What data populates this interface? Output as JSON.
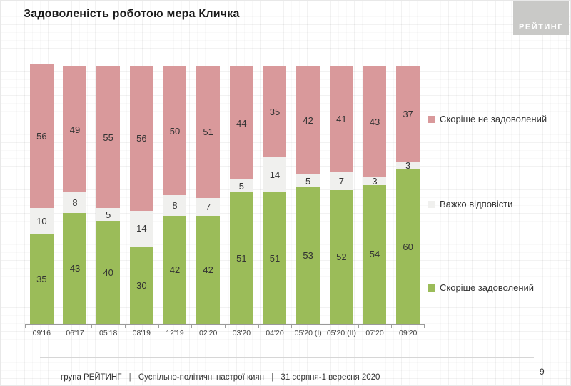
{
  "title": "Задоволеність роботою мера Кличка",
  "logo": {
    "text": "РЕЙТИНГ",
    "background": "#c9c9c7"
  },
  "page_number": "9",
  "footer": {
    "org": "група РЕЙТИНГ",
    "separator": "|",
    "study": "Суспільно-політичні настрої киян",
    "date": "31 серпня-1 вересня  2020"
  },
  "colors": {
    "dissatisfied": "#d9999b",
    "hard_to_say": "#f0f0ee",
    "satisfied": "#9bbc59",
    "axis": "#9a9a9a",
    "value_label": "#333333"
  },
  "chart_data": {
    "type": "bar",
    "stacked": true,
    "unit": "%",
    "title": "Задоволеність роботою мера Кличка",
    "xlabel": "",
    "ylabel": "",
    "ylim": [
      0,
      100
    ],
    "grid": false,
    "legend_position": "right",
    "categories": [
      "09'16",
      "06'17",
      "05'18",
      "08'19",
      "12'19",
      "02'20",
      "03'20",
      "04'20",
      "05'20 (I)",
      "05'20 (II)",
      "07'20",
      "09'20"
    ],
    "series": [
      {
        "name": "Скоріше не задоволений",
        "color": "#d9999b",
        "values": [
          56,
          49,
          55,
          56,
          50,
          51,
          44,
          35,
          42,
          41,
          43,
          37
        ]
      },
      {
        "name": "Важко відповісти",
        "color": "#f0f0ee",
        "values": [
          10,
          8,
          5,
          14,
          8,
          7,
          5,
          14,
          5,
          7,
          3,
          3
        ]
      },
      {
        "name": "Скоріше задоволений",
        "color": "#9bbc59",
        "values": [
          35,
          43,
          40,
          30,
          42,
          42,
          51,
          51,
          53,
          52,
          54,
          60
        ]
      }
    ]
  }
}
